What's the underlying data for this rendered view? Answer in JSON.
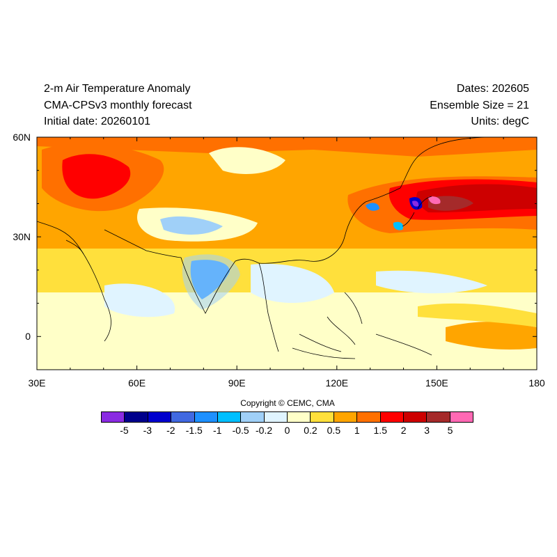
{
  "titles": {
    "left": [
      "2-m Air Temperature Anomaly",
      "CMA-CPSv3 monthly forecast",
      "Initial date: 20260101"
    ],
    "right": [
      "Dates: 202605",
      "Ensemble Size = 21",
      "Units: degC"
    ]
  },
  "map": {
    "lon_range": [
      30,
      180
    ],
    "lat_range": [
      -10,
      60
    ],
    "x_ticks": [
      "30E",
      "60E",
      "90E",
      "120E",
      "150E",
      "180"
    ],
    "y_ticks": [
      "60N",
      "30N",
      "0"
    ],
    "field": "2-m air temperature anomaly",
    "units": "degC"
  },
  "copyright": "Copyright © CEMC, CMA",
  "colorbar": {
    "colors": [
      "#8a2be2",
      "#00008b",
      "#0000cd",
      "#4169e1",
      "#1e90ff",
      "#00bfff",
      "#a0d0f8",
      "#e0f4ff",
      "#ffffc8",
      "#ffe03c",
      "#ffa500",
      "#ff7000",
      "#ff0000",
      "#cd0000",
      "#a52a2a",
      "#ff69b4"
    ],
    "labels": [
      "-5",
      "-3",
      "-2",
      "-1.5",
      "-1",
      "-0.5",
      "-0.2",
      "0",
      "0.2",
      "0.5",
      "1",
      "1.5",
      "2",
      "3",
      "5"
    ]
  }
}
